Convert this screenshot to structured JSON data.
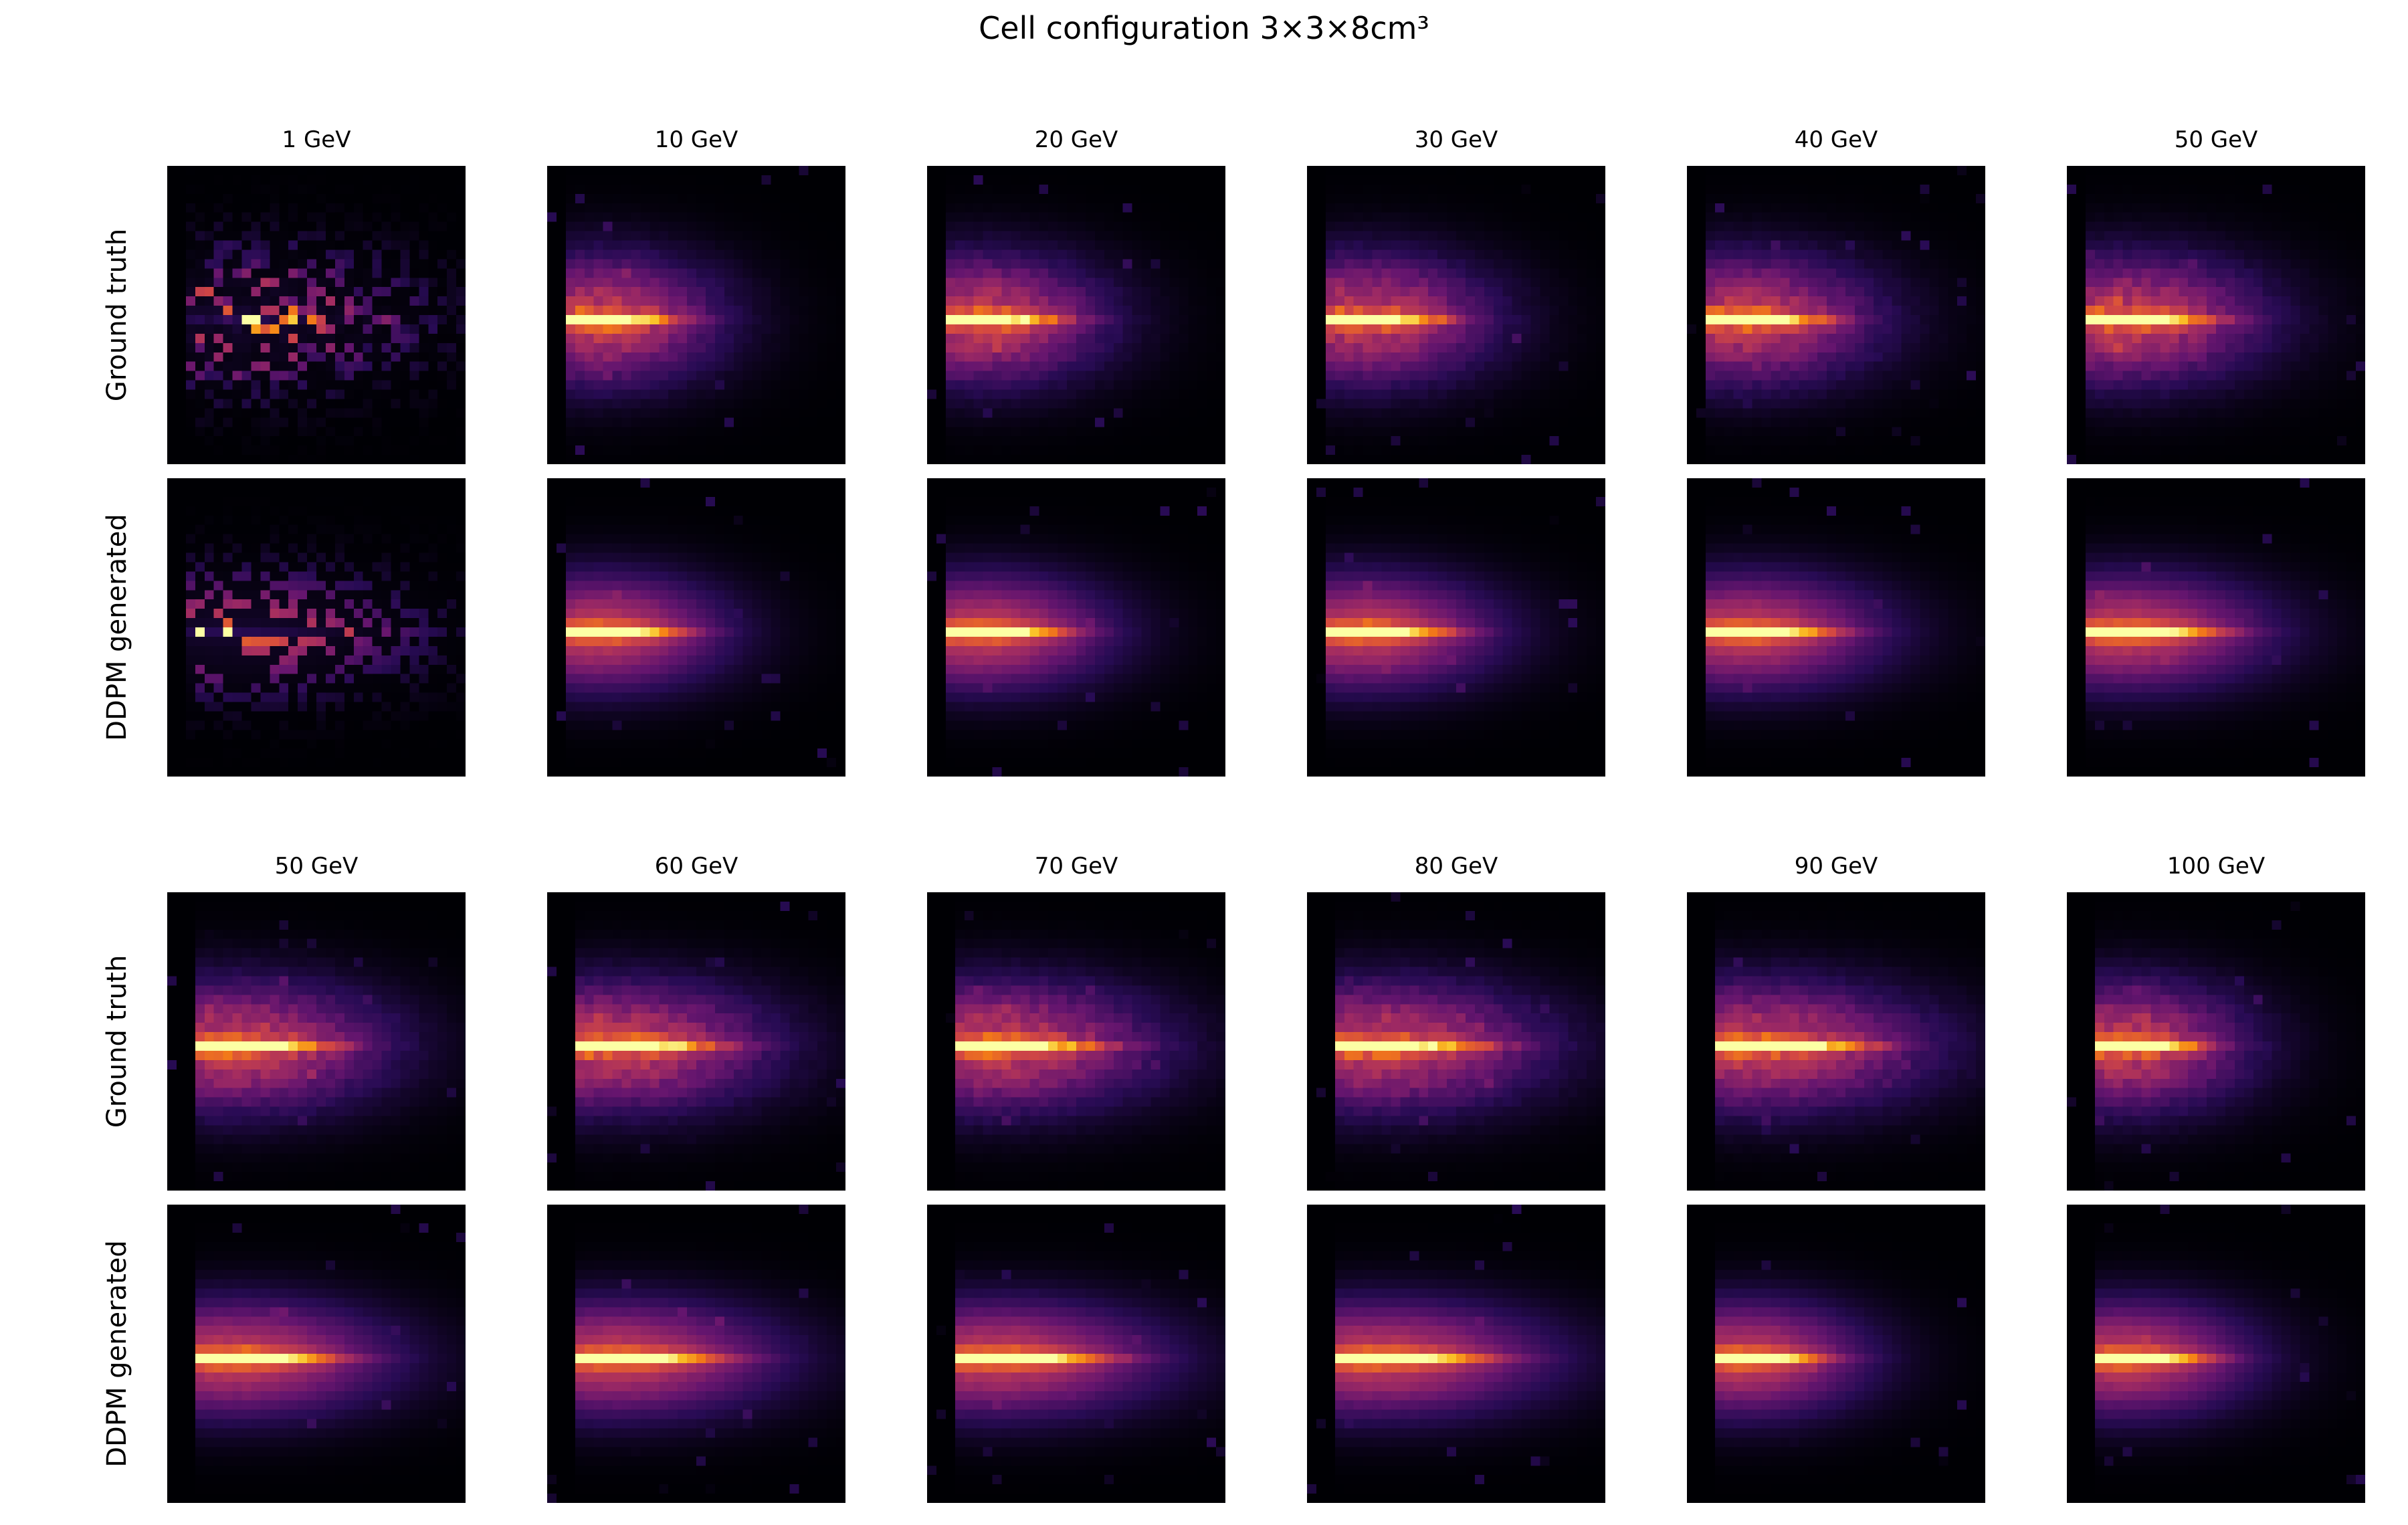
{
  "figure": {
    "title": "Cell configuration 3×3×8cm³"
  },
  "colormap": "inferno",
  "chart_data": [
    {
      "type": "heatmap",
      "block": "top",
      "energies": [
        "1 GeV",
        "10 GeV",
        "20 GeV",
        "30 GeV",
        "40 GeV",
        "50 GeV"
      ],
      "rows": [
        "Ground truth",
        "DDPM generated"
      ],
      "grid": [
        32,
        32
      ],
      "axes": "off",
      "colorbar": false
    },
    {
      "type": "heatmap",
      "block": "bottom",
      "energies": [
        "50 GeV",
        "60 GeV",
        "70 GeV",
        "80 GeV",
        "90 GeV",
        "100 GeV"
      ],
      "rows": [
        "Ground truth",
        "DDPM generated"
      ],
      "grid": [
        32,
        32
      ],
      "axes": "off",
      "colorbar": false
    }
  ]
}
